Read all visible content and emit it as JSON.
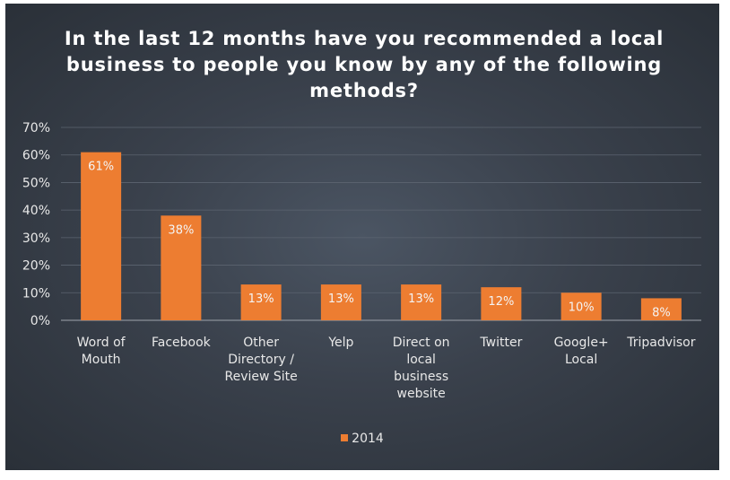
{
  "chart_data": {
    "type": "bar",
    "title": "In the last 12 months have you recommended a local business to people you know by any of the following methods?",
    "categories": [
      [
        "Word of",
        "Mouth"
      ],
      [
        "Facebook"
      ],
      [
        "Other",
        "Directory /",
        "Review Site"
      ],
      [
        "Yelp"
      ],
      [
        "Direct on",
        "local",
        "business",
        "website"
      ],
      [
        "Twitter"
      ],
      [
        "Google+",
        "Local"
      ],
      [
        "Tripadvisor"
      ]
    ],
    "series": [
      {
        "name": "2014",
        "values": [
          61,
          38,
          13,
          13,
          13,
          12,
          10,
          8
        ],
        "data_labels": [
          "61%",
          "38%",
          "13%",
          "13%",
          "13%",
          "12%",
          "10%",
          "8%"
        ]
      }
    ],
    "ylim": [
      0,
      70
    ],
    "yticks": [
      "0%",
      "10%",
      "20%",
      "30%",
      "40%",
      "50%",
      "60%",
      "70%"
    ],
    "ytick_values": [
      0,
      10,
      20,
      30,
      40,
      50,
      60,
      70
    ],
    "xlabel": "",
    "ylabel": "",
    "grid": true,
    "legend_position": "bottom",
    "colors": {
      "bar": "#ed7d31",
      "grid": "#5c6470",
      "axis": "#8a9099",
      "text": "#e8e8e8",
      "background": "#3a414c"
    }
  }
}
